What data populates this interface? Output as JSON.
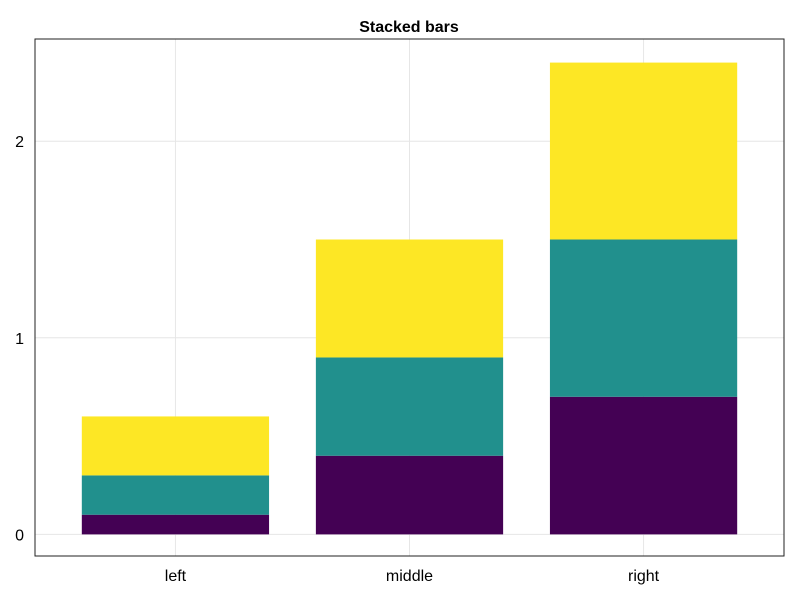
{
  "chart_data": {
    "type": "bar",
    "stacked": true,
    "title": "Stacked bars",
    "xlabel": "",
    "ylabel": "",
    "categories": [
      "left",
      "middle",
      "right"
    ],
    "series": [
      {
        "values": [
          0.1,
          0.4,
          0.7
        ],
        "color": "#440154"
      },
      {
        "values": [
          0.2,
          0.5,
          0.8
        ],
        "color": "#21908d"
      },
      {
        "values": [
          0.3,
          0.6,
          0.9
        ],
        "color": "#fde725"
      }
    ],
    "ylim": [
      -0.11,
      2.52
    ],
    "yticks": [
      0,
      1,
      2
    ],
    "ytick_labels": [
      "0",
      "1",
      "2"
    ],
    "grid": true,
    "legend": "none"
  }
}
